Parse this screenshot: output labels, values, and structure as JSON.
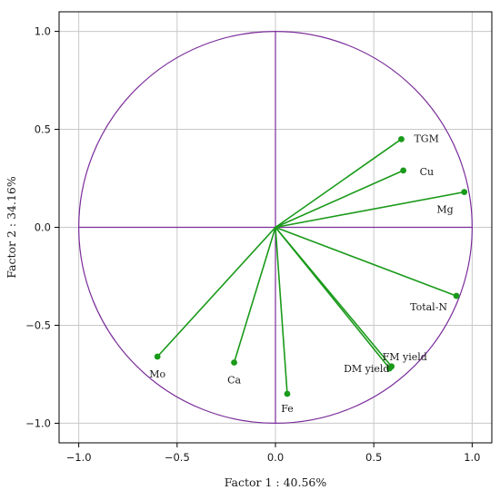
{
  "chart_data": {
    "type": "scatter",
    "subtype": "pca-correlation-circle",
    "title": "",
    "xlabel": "Factor 1 : 40.56%",
    "ylabel": "Factor 2 : 34.16%",
    "xlim": [
      -1.1,
      1.1
    ],
    "ylim": [
      -1.1,
      1.1
    ],
    "xticks": [
      -1.0,
      -0.5,
      0.0,
      0.5,
      1.0
    ],
    "yticks": [
      -1.0,
      -0.5,
      0.0,
      0.5,
      1.0
    ],
    "xtick_labels": [
      "−1.0",
      "−0.5",
      "0.0",
      "0.5",
      "1.0"
    ],
    "ytick_labels": [
      "−1.0",
      "−0.5",
      "0.0",
      "0.5",
      "1.0"
    ],
    "grid": true,
    "unit_circle": true,
    "colors": {
      "vectors": "#1a9a1a",
      "circle": "#7b2d9b",
      "grid": "#c8c8c8",
      "frame": "#000000"
    },
    "points": [
      {
        "label": "TGM",
        "x": 0.64,
        "y": 0.45
      },
      {
        "label": "Cu",
        "x": 0.65,
        "y": 0.29
      },
      {
        "label": "Mg",
        "x": 0.96,
        "y": 0.18
      },
      {
        "label": "Total-N",
        "x": 0.92,
        "y": -0.35
      },
      {
        "label": "FM yield",
        "x": 0.59,
        "y": -0.71
      },
      {
        "label": "DM yield",
        "x": 0.58,
        "y": -0.72
      },
      {
        "label": "Fe",
        "x": 0.06,
        "y": -0.85
      },
      {
        "label": "Ca",
        "x": -0.21,
        "y": -0.69
      },
      {
        "label": "Mo",
        "x": -0.6,
        "y": -0.66
      }
    ]
  }
}
